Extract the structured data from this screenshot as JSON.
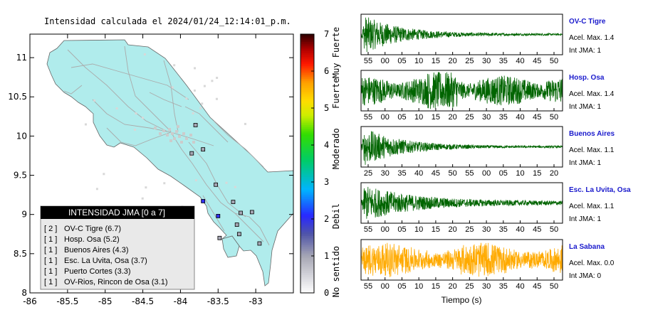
{
  "header": {
    "title": "Intensidad calculada el 2024/01/24_12:14:01_p.m."
  },
  "map": {
    "x_ticks": [
      -86,
      -85.5,
      -85,
      -84.5,
      -84,
      -83.5,
      -83
    ],
    "y_ticks": [
      8,
      8.5,
      9,
      9.5,
      10,
      10.5,
      11
    ],
    "xlim": [
      -86,
      -82.5
    ],
    "ylim": [
      8,
      11.3
    ],
    "land_color": "#b0ecec",
    "road_color": "#aaaaaa",
    "stations": [
      {
        "lon": -83.8,
        "lat": 10.14,
        "intensity": 1
      },
      {
        "lon": -83.7,
        "lat": 9.83,
        "intensity": 1
      },
      {
        "lon": -83.85,
        "lat": 9.78,
        "intensity": 1
      },
      {
        "lon": -83.53,
        "lat": 9.38,
        "intensity": 1
      },
      {
        "lon": -83.7,
        "lat": 9.17,
        "intensity": 2
      },
      {
        "lon": -83.3,
        "lat": 9.16,
        "intensity": 1
      },
      {
        "lon": -83.2,
        "lat": 9.02,
        "intensity": 1
      },
      {
        "lon": -83.05,
        "lat": 9.03,
        "intensity": 1
      },
      {
        "lon": -83.5,
        "lat": 8.98,
        "intensity": 2
      },
      {
        "lon": -83.25,
        "lat": 8.87,
        "intensity": 1
      },
      {
        "lon": -83.22,
        "lat": 8.75,
        "intensity": 1
      },
      {
        "lon": -83.48,
        "lat": 8.7,
        "intensity": 1
      },
      {
        "lon": -82.95,
        "lat": 8.63,
        "intensity": 1
      }
    ]
  },
  "legend_box": {
    "title": "INTENSIDAD JMA [0 a 7]",
    "items": [
      {
        "level": "[ 2 ]",
        "text": "OV-C Tigre (6.7)"
      },
      {
        "level": "[ 1 ]",
        "text": "Hosp. Osa (5.2)"
      },
      {
        "level": "[ 1 ]",
        "text": "Buenos Aires (4.3)"
      },
      {
        "level": "[ 1 ]",
        "text": "Esc. La Uvita, Osa (3.7)"
      },
      {
        "level": "[ 1 ]",
        "text": "Puerto Cortes (3.3)"
      },
      {
        "level": "[ 1 ]",
        "text": "OV-Rios, Rincon de Osa (3.1)"
      }
    ]
  },
  "colorbar": {
    "ticks": [
      0,
      1,
      2,
      3,
      4,
      5,
      6,
      7
    ],
    "range": [
      0,
      7
    ],
    "bands": [
      {
        "label": "No sentido",
        "from": 0,
        "to": 1.15
      },
      {
        "label": "Debil",
        "from": 1.15,
        "to": 3
      },
      {
        "label": "Moderado",
        "from": 3,
        "to": 4.8
      },
      {
        "label": "Fuerte",
        "from": 4.8,
        "to": 6
      },
      {
        "label": "Muy Fuerte",
        "from": 6,
        "to": 7
      }
    ],
    "color_stops": [
      {
        "v": 0,
        "c": "#ffffff"
      },
      {
        "v": 1,
        "c": "#a6a6b4"
      },
      {
        "v": 1.6,
        "c": "#5055a8"
      },
      {
        "v": 2.1,
        "c": "#2828ff"
      },
      {
        "v": 2.8,
        "c": "#00b4ff"
      },
      {
        "v": 3.6,
        "c": "#00cc66"
      },
      {
        "v": 4.3,
        "c": "#33dd00"
      },
      {
        "v": 4.8,
        "c": "#ccee00"
      },
      {
        "v": 5.2,
        "c": "#ffdd00"
      },
      {
        "v": 5.7,
        "c": "#ffa000"
      },
      {
        "v": 6.2,
        "c": "#ff1800"
      },
      {
        "v": 6.6,
        "c": "#b00000"
      },
      {
        "v": 7,
        "c": "#300000"
      }
    ]
  },
  "chart_data": {
    "type": "line",
    "xlabel": "Tiempo (s)",
    "panels": [
      {
        "station": "OV-C Tigre",
        "acel": "Acel. Max. 1.4",
        "int": "Int JMA: 1",
        "color": "#006400",
        "ticks": [
          "55",
          "00",
          "05",
          "10",
          "15",
          "20",
          "25",
          "30",
          "35",
          "40",
          "45",
          "50"
        ],
        "envelope": "decay",
        "peak": 1.4
      },
      {
        "station": "Hosp. Osa",
        "acel": "Acel. Max. 1.4",
        "int": "Int JMA: 1",
        "color": "#006400",
        "ticks": [
          "55",
          "00",
          "05",
          "10",
          "15",
          "20",
          "25",
          "30",
          "35",
          "40",
          "45",
          "50"
        ],
        "envelope": "bursty",
        "peak": 1.4
      },
      {
        "station": "Buenos Aires",
        "acel": "Acel. Max. 1.1",
        "int": "Int JMA: 1",
        "color": "#006400",
        "ticks": [
          "25",
          "30",
          "35",
          "40",
          "45",
          "50",
          "55",
          "00",
          "05",
          "10",
          "15",
          "20"
        ],
        "envelope": "decay",
        "peak": 1.1
      },
      {
        "station": "Esc. La Uvita, Osa",
        "acel": "Acel. Max. 1.1",
        "int": "Int JMA: 1",
        "color": "#006400",
        "ticks": [
          "55",
          "00",
          "05",
          "10",
          "15",
          "20",
          "25",
          "30",
          "35",
          "40",
          "45",
          "50"
        ],
        "envelope": "decay2",
        "peak": 1.1
      },
      {
        "station": "La Sabana",
        "acel": "Acel. Max. 0.0",
        "int": "Int JMA: 0",
        "color": "#ffaa00",
        "ticks": [
          "55",
          "00",
          "05",
          "10",
          "15",
          "20",
          "25",
          "30",
          "35",
          "40",
          "45",
          "50"
        ],
        "envelope": "noise",
        "peak": 0.0
      }
    ]
  }
}
